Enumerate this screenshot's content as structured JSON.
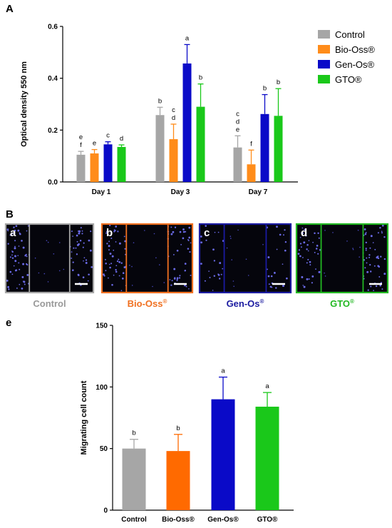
{
  "figure": {
    "panel_a_letter": "A",
    "panel_b_letter": "B",
    "panel_e_letter": "e"
  },
  "chart_data": [
    {
      "type": "bar",
      "ylabel": "Optical density 550 nm",
      "ylim": [
        0,
        0.6
      ],
      "yticks": [
        "0.0",
        "0.2",
        "0.4",
        "0.6"
      ],
      "yticks_values": [
        0.0,
        0.2,
        0.4,
        0.6
      ],
      "categories": [
        "Day 1",
        "Day 3",
        "Day 7"
      ],
      "legend_position": "right",
      "series": [
        {
          "name": "Control",
          "color": "#a6a6a6",
          "values": [
            0.105,
            0.258,
            0.133
          ],
          "errors": [
            0.013,
            0.03,
            0.045
          ],
          "letters": [
            [
              "e",
              "f"
            ],
            [
              "b"
            ],
            [
              "c",
              "d",
              "e"
            ]
          ]
        },
        {
          "name": "Bio-Oss®",
          "color": "#ff8c1a",
          "values": [
            0.11,
            0.165,
            0.068
          ],
          "errors": [
            0.015,
            0.058,
            0.055
          ],
          "letters": [
            [
              "e"
            ],
            [
              "c",
              "d"
            ],
            [
              "f"
            ]
          ]
        },
        {
          "name": "Gen-Os®",
          "color": "#0a0ac8",
          "values": [
            0.145,
            0.457,
            0.262
          ],
          "errors": [
            0.01,
            0.073,
            0.075
          ],
          "letters": [
            [
              "c"
            ],
            [
              "a"
            ],
            [
              "b"
            ]
          ]
        },
        {
          "name": "GTO®",
          "color": "#1ac81a",
          "values": [
            0.135,
            0.29,
            0.255
          ],
          "errors": [
            0.008,
            0.088,
            0.105
          ],
          "letters": [
            [
              "d"
            ],
            [
              "b"
            ],
            [
              "b"
            ]
          ]
        }
      ]
    },
    {
      "type": "bar",
      "ylabel": "Migrating cell count",
      "ylim": [
        0,
        150
      ],
      "yticks": [
        "0",
        "50",
        "100",
        "150"
      ],
      "yticks_values": [
        0,
        50,
        100,
        150
      ],
      "categories": [
        "Control",
        "Bio-Oss®",
        "Gen-Os®",
        "GTO®"
      ],
      "colors": [
        "#a6a6a6",
        "#ff6a00",
        "#0a0ac8",
        "#1ac81a"
      ],
      "values": [
        50,
        48,
        90,
        84
      ],
      "errors": [
        7.5,
        13.5,
        18,
        11.5
      ],
      "letters": [
        "b",
        "b",
        "a",
        "a"
      ]
    }
  ],
  "micrographs": [
    {
      "letter": "a",
      "label": "Control",
      "color": "#a6a6a6",
      "label_color": "#999999",
      "superscript": ""
    },
    {
      "letter": "b",
      "label": "Bio-Oss",
      "color": "#f07020",
      "label_color": "#f07020",
      "superscript": "®"
    },
    {
      "letter": "c",
      "label": "Gen-Os",
      "color": "#1a1aa0",
      "label_color": "#1a1aa0",
      "superscript": "®"
    },
    {
      "letter": "d",
      "label": "GTO",
      "color": "#22b822",
      "label_color": "#22b822",
      "superscript": "®"
    }
  ]
}
